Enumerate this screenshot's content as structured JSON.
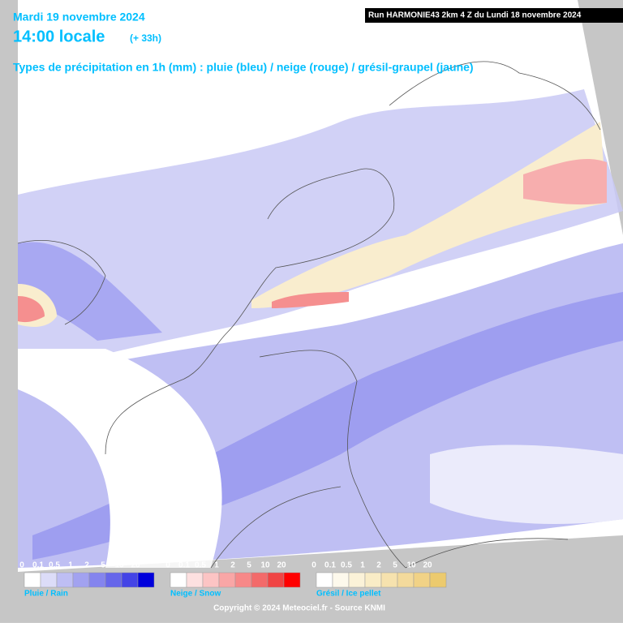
{
  "header": {
    "date": "Mardi 19 novembre 2024",
    "time": "14:00 locale",
    "offset": "(+ 33h)",
    "subtitle": "Types de précipitation en 1h (mm) : pluie (bleu) / neige (rouge) / grésil-graupel (jaune)",
    "run": "Run HARMONIE43 2km 4 Z du Lundi 18 novembre 2024"
  },
  "legend": {
    "labels": [
      "0",
      "0.1",
      "0.5",
      "1",
      "2",
      "5",
      "10",
      "20"
    ],
    "scales": [
      {
        "caption": "Pluie / Rain",
        "colors": [
          "#ffffff",
          "#dcdcf8",
          "#bebef4",
          "#a2a2f0",
          "#8484ee",
          "#6666ea",
          "#4444e6",
          "#0000dc"
        ]
      },
      {
        "caption": "Neige / Snow",
        "colors": [
          "#ffffff",
          "#fde0e0",
          "#fcc4c4",
          "#f9a6a6",
          "#f78888",
          "#f36a6a",
          "#f04444",
          "#ff0000"
        ]
      },
      {
        "caption": "Grésil / Ice pellet",
        "colors": [
          "#ffffff",
          "#fdf9ec",
          "#fbf2d8",
          "#f9ecc6",
          "#f6e2ae",
          "#f3da9c",
          "#f1d286",
          "#ecca6e"
        ]
      }
    ]
  },
  "footer": {
    "copyright": "Copyright © 2024 Meteociel.fr - Source KNMI"
  }
}
